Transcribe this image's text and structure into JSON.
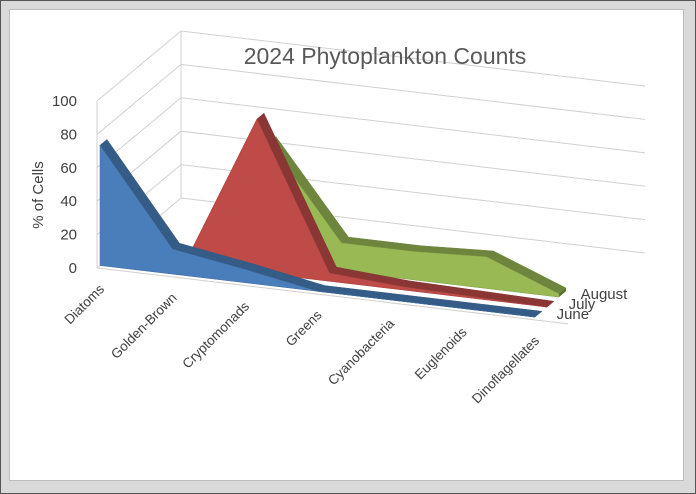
{
  "chart_data": {
    "type": "area",
    "title": "2024 Phytoplankton Counts",
    "ylabel": "% of Cells",
    "xlabel": "",
    "ylim": [
      0,
      100
    ],
    "yticks": [
      "0",
      "20",
      "40",
      "60",
      "80",
      "100"
    ],
    "categories": [
      "Diatoms",
      "Golden-Brown",
      "Cryptomonads",
      "Greens",
      "Cyanobacteria",
      "Euglenoids",
      "Dinoflagellates"
    ],
    "series": [
      {
        "name": "June",
        "values": [
          72,
          15,
          8,
          0,
          0,
          0,
          0
        ],
        "color": "#4a7ebb"
      },
      {
        "name": "July",
        "values": [
          0,
          0,
          92,
          5,
          2,
          1,
          0
        ],
        "color": "#be4b48"
      },
      {
        "name": "August",
        "values": [
          0,
          0,
          72,
          17,
          17,
          19,
          2
        ],
        "color": "#98b954"
      }
    ],
    "grid": true
  }
}
